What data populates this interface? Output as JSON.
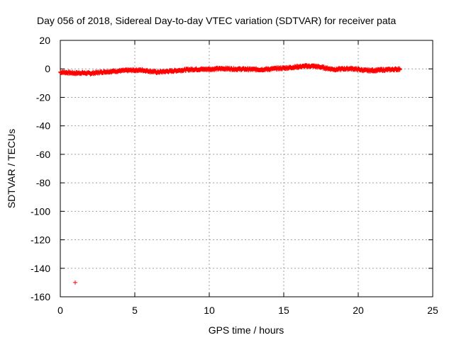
{
  "chart_data": {
    "type": "scatter",
    "title": "Day 056 of 2018, Sidereal Day-to-day VTEC variation (SDTVAR) for receiver pata",
    "xlabel": "GPS time / hours",
    "ylabel": "SDTVAR / TECUs",
    "xlim": [
      0,
      25
    ],
    "ylim": [
      -160,
      20
    ],
    "xticks": [
      0,
      5,
      10,
      15,
      20,
      25
    ],
    "yticks": [
      20,
      0,
      -20,
      -40,
      -60,
      -80,
      -100,
      -120,
      -140,
      -160
    ],
    "grid": true,
    "marker": "plus",
    "marker_color": "#ff0000",
    "trace": [
      [
        0.0,
        -2.3
      ],
      [
        0.5,
        -2.6
      ],
      [
        1.0,
        -3.0
      ],
      [
        1.5,
        -2.8
      ],
      [
        2.0,
        -3.2
      ],
      [
        2.5,
        -2.6
      ],
      [
        3.0,
        -2.0
      ],
      [
        3.5,
        -1.7
      ],
      [
        4.0,
        -1.4
      ],
      [
        4.5,
        -1.1
      ],
      [
        5.0,
        -0.9
      ],
      [
        5.5,
        -0.9
      ],
      [
        6.0,
        -1.6
      ],
      [
        6.5,
        -2.3
      ],
      [
        7.0,
        -1.9
      ],
      [
        7.5,
        -1.5
      ],
      [
        8.0,
        -1.0
      ],
      [
        8.5,
        -0.6
      ],
      [
        9.0,
        -0.3
      ],
      [
        9.5,
        -0.3
      ],
      [
        10.0,
        -0.2
      ],
      [
        10.5,
        0.0
      ],
      [
        11.0,
        0.2
      ],
      [
        11.5,
        0.0
      ],
      [
        12.0,
        -0.2
      ],
      [
        12.5,
        -0.2
      ],
      [
        13.0,
        -0.4
      ],
      [
        13.5,
        -0.4
      ],
      [
        14.0,
        -0.2
      ],
      [
        14.5,
        0.2
      ],
      [
        15.0,
        0.5
      ],
      [
        15.5,
        1.0
      ],
      [
        16.0,
        1.5
      ],
      [
        16.5,
        1.9
      ],
      [
        17.0,
        1.9
      ],
      [
        17.5,
        1.2
      ],
      [
        18.0,
        0.2
      ],
      [
        18.5,
        -0.4
      ],
      [
        19.0,
        0.0
      ],
      [
        19.5,
        0.2
      ],
      [
        20.0,
        -0.4
      ],
      [
        20.5,
        -1.1
      ],
      [
        21.0,
        -1.1
      ],
      [
        21.5,
        -0.8
      ],
      [
        22.0,
        -0.6
      ],
      [
        22.5,
        -0.3
      ],
      [
        22.8,
        -0.2
      ]
    ],
    "outliers": [
      [
        1.0,
        -150
      ]
    ]
  }
}
